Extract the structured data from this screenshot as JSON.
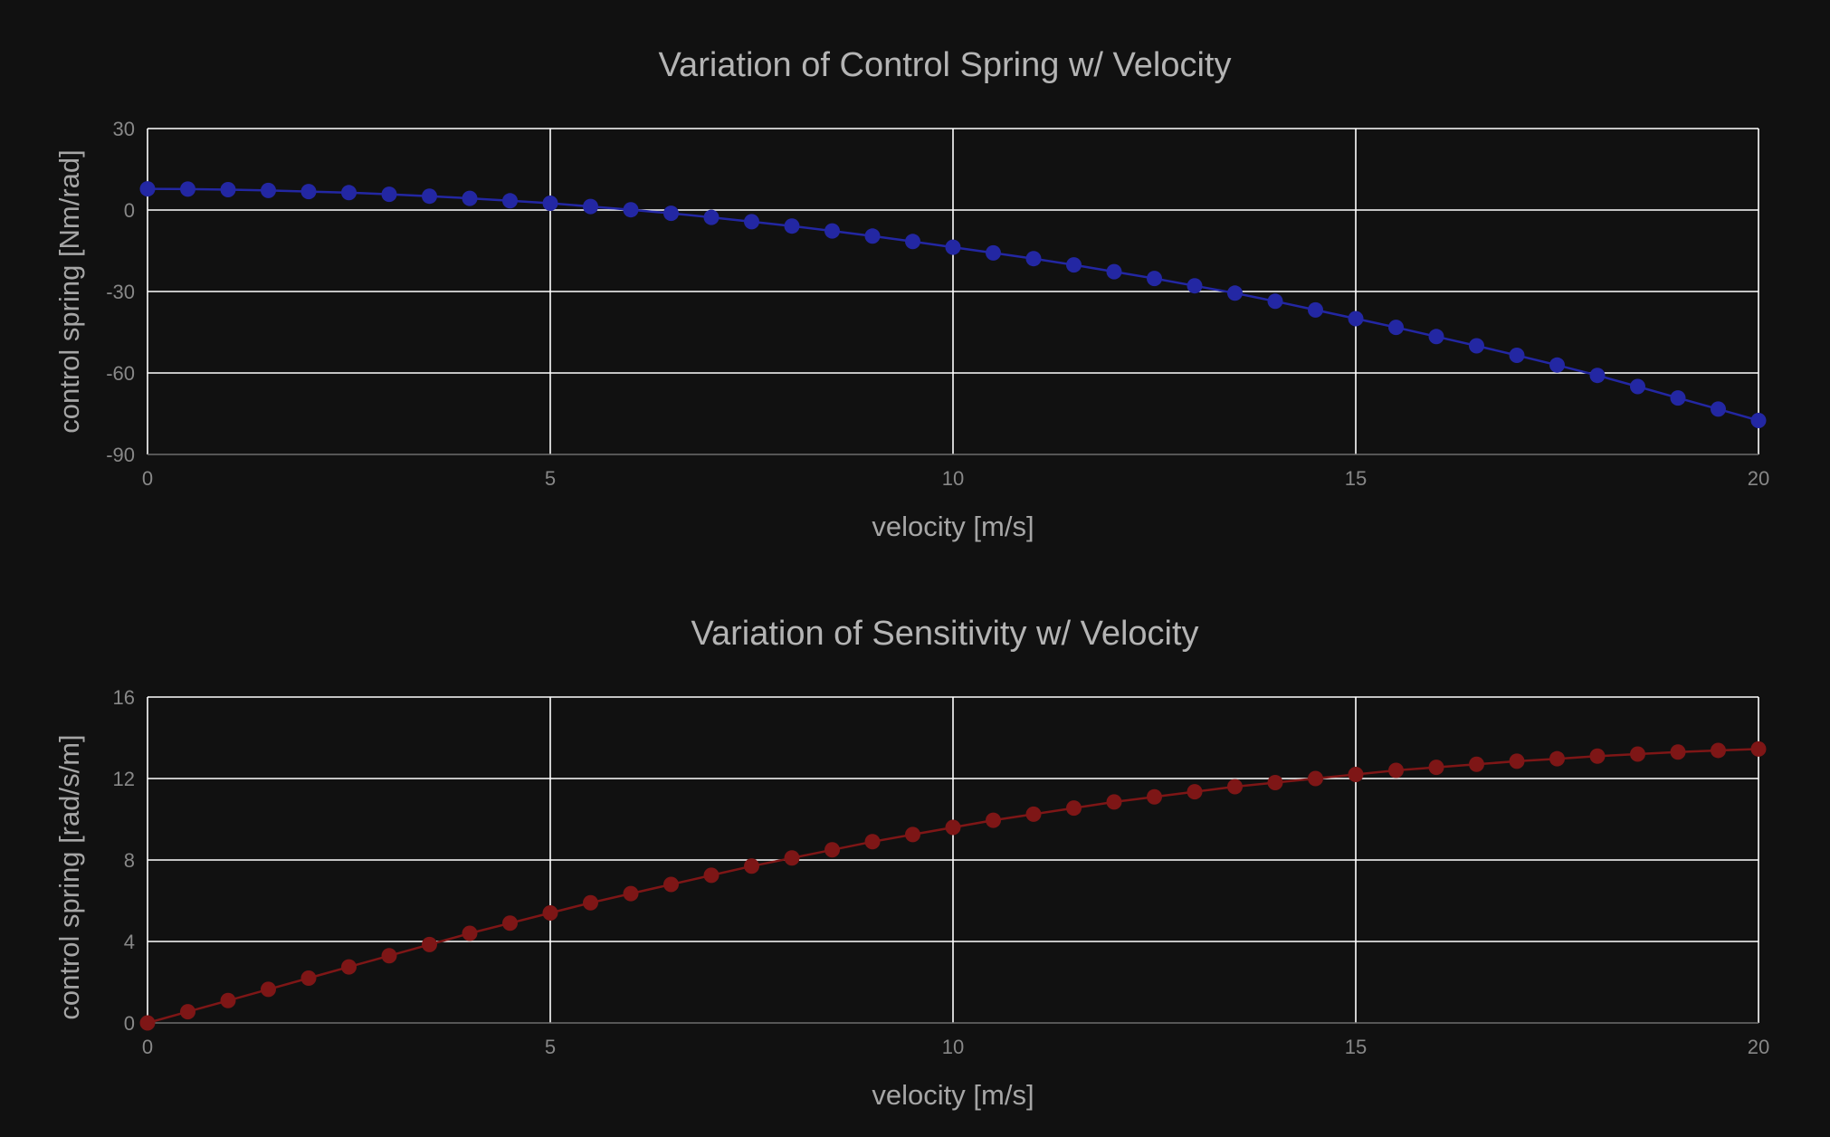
{
  "colors": {
    "background": "#111111",
    "grid": "#ffffff",
    "series_top": "#2327a3",
    "series_bottom": "#7e1616"
  },
  "chart_data": [
    {
      "type": "line",
      "title": "Variation of Control Spring w/ Velocity",
      "xlabel": "velocity [m/s]",
      "ylabel": "control spring [Nm/rad]",
      "xlim": [
        0,
        20
      ],
      "ylim": [
        -90,
        30
      ],
      "xticks": [
        "0",
        "5",
        "10",
        "15",
        "20"
      ],
      "yticks": [
        "30",
        "0",
        "-30",
        "-60",
        "-90"
      ],
      "xtick_values": [
        0,
        5,
        10,
        15,
        20
      ],
      "ytick_values": [
        30,
        0,
        -30,
        -60,
        -90
      ],
      "grid": true,
      "markers": true,
      "x": [
        0,
        0.5,
        1,
        1.5,
        2,
        2.5,
        3,
        3.5,
        4,
        4.5,
        5,
        5.5,
        6,
        6.5,
        7,
        7.5,
        8,
        8.5,
        9,
        9.5,
        10,
        10.5,
        11,
        11.5,
        12,
        12.5,
        13,
        13.5,
        14,
        14.5,
        15,
        15.5,
        16,
        16.5,
        17,
        17.5,
        18,
        18.5,
        19,
        19.5,
        20
      ],
      "series": [
        {
          "color": "#2327a3",
          "values": [
            7.8,
            7.7,
            7.5,
            7.2,
            6.8,
            6.4,
            5.8,
            5.1,
            4.3,
            3.4,
            2.5,
            1.3,
            0.1,
            -1.2,
            -2.7,
            -4.3,
            -5.9,
            -7.7,
            -9.6,
            -11.6,
            -13.7,
            -15.8,
            -17.9,
            -20.2,
            -22.7,
            -25.2,
            -27.9,
            -30.6,
            -33.6,
            -36.8,
            -40.0,
            -43.2,
            -46.6,
            -50.0,
            -53.5,
            -57.1,
            -60.9,
            -65.0,
            -69.2,
            -73.3,
            -77.5
          ]
        }
      ]
    },
    {
      "type": "line",
      "title": "Variation of Sensitivity w/ Velocity",
      "xlabel": "velocity [m/s]",
      "ylabel": "control spring [rad/s/m]",
      "xlim": [
        0,
        20
      ],
      "ylim": [
        0,
        16
      ],
      "xticks": [
        "0",
        "5",
        "10",
        "15",
        "20"
      ],
      "yticks": [
        "16",
        "12",
        "8",
        "4",
        "0"
      ],
      "xtick_values": [
        0,
        5,
        10,
        15,
        20
      ],
      "ytick_values": [
        16,
        12,
        8,
        4,
        0
      ],
      "grid": true,
      "markers": true,
      "x": [
        0,
        0.5,
        1,
        1.5,
        2,
        2.5,
        3,
        3.5,
        4,
        4.5,
        5,
        5.5,
        6,
        6.5,
        7,
        7.5,
        8,
        8.5,
        9,
        9.5,
        10,
        10.5,
        11,
        11.5,
        12,
        12.5,
        13,
        13.5,
        14,
        14.5,
        15,
        15.5,
        16,
        16.5,
        17,
        17.5,
        18,
        18.5,
        19,
        19.5,
        20
      ],
      "series": [
        {
          "color": "#7e1616",
          "values": [
            0.0,
            0.55,
            1.1,
            1.65,
            2.2,
            2.75,
            3.3,
            3.85,
            4.4,
            4.9,
            5.4,
            5.9,
            6.35,
            6.8,
            7.25,
            7.7,
            8.1,
            8.5,
            8.9,
            9.25,
            9.6,
            9.95,
            10.25,
            10.55,
            10.85,
            11.1,
            11.35,
            11.6,
            11.8,
            12.0,
            12.2,
            12.4,
            12.55,
            12.7,
            12.85,
            12.97,
            13.1,
            13.2,
            13.3,
            13.38,
            13.45
          ]
        }
      ]
    }
  ]
}
